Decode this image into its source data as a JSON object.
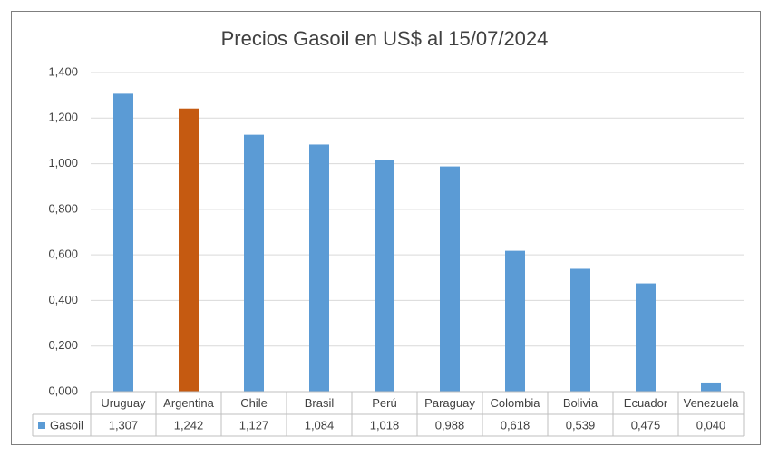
{
  "chart_data": {
    "type": "bar",
    "title": "Precios Gasoil en US$ al 15/07/2024",
    "categories": [
      "Uruguay",
      "Argentina",
      "Chile",
      "Brasil",
      "Perú",
      "Paraguay",
      "Colombia",
      "Bolivia",
      "Ecuador",
      "Venezuela"
    ],
    "series": [
      {
        "name": "Gasoil",
        "color": "#5b9bd5",
        "colors": [
          "#5b9bd5",
          "#c55a11",
          "#5b9bd5",
          "#5b9bd5",
          "#5b9bd5",
          "#5b9bd5",
          "#5b9bd5",
          "#5b9bd5",
          "#5b9bd5",
          "#5b9bd5"
        ],
        "values": [
          1.307,
          1.242,
          1.127,
          1.084,
          1.018,
          0.988,
          0.618,
          0.539,
          0.475,
          0.04
        ],
        "value_labels": [
          "1,307",
          "1,242",
          "1,127",
          "1,084",
          "1,018",
          "0,988",
          "0,618",
          "0,539",
          "0,475",
          "0,040"
        ]
      }
    ],
    "ylim": [
      0,
      1.4
    ],
    "yticks": [
      {
        "value": 0,
        "label": "0,000"
      },
      {
        "value": 0.2,
        "label": "0,200"
      },
      {
        "value": 0.4,
        "label": "0,400"
      },
      {
        "value": 0.6,
        "label": "0,600"
      },
      {
        "value": 0.8,
        "label": "0,800"
      },
      {
        "value": 1.0,
        "label": "1,000"
      },
      {
        "value": 1.2,
        "label": "1,200"
      },
      {
        "value": 1.4,
        "label": "1,400"
      }
    ],
    "grid": true,
    "data_table": true
  }
}
